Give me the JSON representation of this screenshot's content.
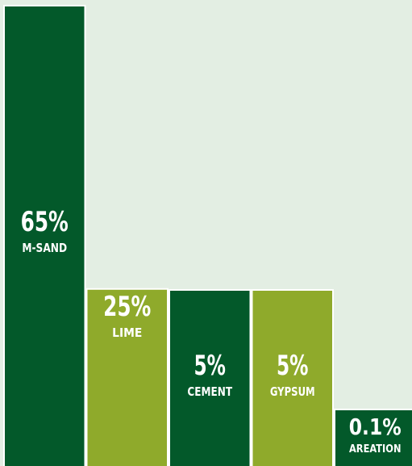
{
  "chart_data": {
    "type": "bar",
    "categories": [
      "M-SAND",
      "LIME",
      "CEMENT",
      "GYPSUM",
      "AREATION"
    ],
    "values": [
      65,
      25,
      5,
      5,
      0.1
    ],
    "value_labels": [
      "65%",
      "25%",
      "5%",
      "5%",
      "0.1%"
    ],
    "title": "",
    "xlabel": "",
    "ylabel": "",
    "colors": [
      "#03592a",
      "#8faa2b",
      "#03592a",
      "#8faa2b",
      "#03592a"
    ],
    "grid": false,
    "legend": "none"
  },
  "background": "#e3eee3"
}
